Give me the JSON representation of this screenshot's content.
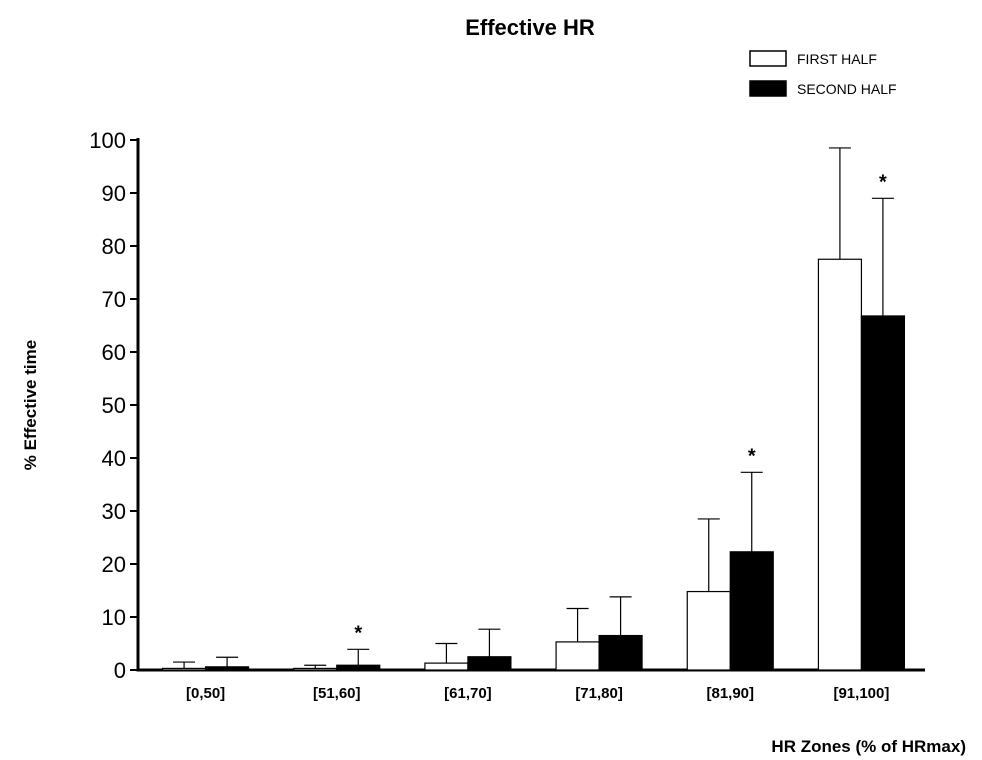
{
  "chart_data": {
    "type": "bar",
    "title": "Effective HR",
    "xlabel": "HR Zones (% of HRmax)",
    "ylabel": "% Effective time",
    "categories": [
      "[0,50]",
      "[51,60]",
      "[61,70]",
      "[71,80]",
      "[81,90]",
      "[91,100]"
    ],
    "series": [
      {
        "name": "FIRST HALF",
        "fill": "#ffffff",
        "values": [
          0.3,
          0.3,
          1.3,
          5.3,
          14.8,
          77.5
        ],
        "errors": [
          1.2,
          0.6,
          3.7,
          6.3,
          13.7,
          21.0
        ]
      },
      {
        "name": "SECOND HALF",
        "fill": "#000000",
        "values": [
          0.6,
          0.9,
          2.5,
          6.5,
          22.3,
          66.8
        ],
        "errors": [
          1.8,
          3.0,
          5.2,
          7.3,
          15.0,
          22.2
        ]
      }
    ],
    "significance": [
      {
        "category": "[51,60]",
        "series": "SECOND HALF",
        "mark": "*"
      },
      {
        "category": "[81,90]",
        "series": "SECOND HALF",
        "mark": "*"
      },
      {
        "category": "[91,100]",
        "series": "SECOND HALF",
        "mark": "*"
      }
    ],
    "ylim": [
      0,
      100
    ],
    "yticks": [
      0,
      10,
      20,
      30,
      40,
      50,
      60,
      70,
      80,
      90,
      100
    ],
    "grid": false,
    "legend": "top-right"
  }
}
